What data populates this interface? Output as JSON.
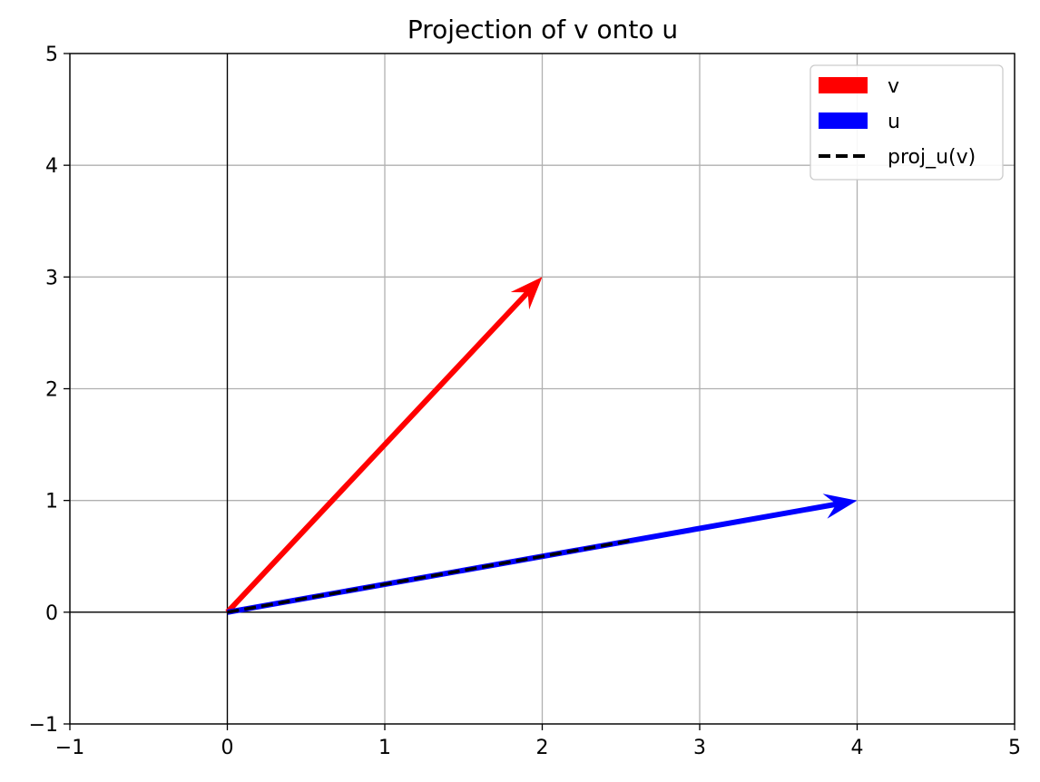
{
  "chart_data": {
    "type": "vector",
    "title": "Projection of v onto u",
    "xlabel": "",
    "ylabel": "",
    "xlim": [
      -1,
      5
    ],
    "ylim": [
      -1,
      5
    ],
    "xticks": [
      -1,
      0,
      1,
      2,
      3,
      4,
      5
    ],
    "yticks": [
      -1,
      0,
      1,
      2,
      3,
      4,
      5
    ],
    "xtick_labels": [
      "−1",
      "0",
      "1",
      "2",
      "3",
      "4",
      "5"
    ],
    "ytick_labels": [
      "−1",
      "0",
      "1",
      "2",
      "3",
      "4",
      "5"
    ],
    "grid": true,
    "axis_lines": {
      "x": 0,
      "y": 0
    },
    "legend_position": "top-right",
    "series": [
      {
        "name": "v",
        "kind": "arrow",
        "start": [
          0,
          0
        ],
        "end": [
          2,
          3
        ],
        "color": "#ff0000"
      },
      {
        "name": "u",
        "kind": "arrow",
        "start": [
          0,
          0
        ],
        "end": [
          4,
          1
        ],
        "color": "#0000ff"
      },
      {
        "name": "proj_u(v)",
        "kind": "dashed-line",
        "start": [
          0,
          0
        ],
        "end": [
          2.588,
          0.647
        ],
        "color": "#000000"
      }
    ]
  }
}
